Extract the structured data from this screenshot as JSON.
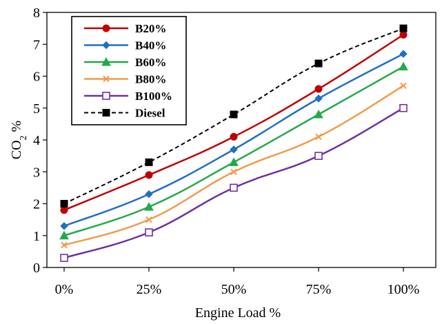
{
  "chart_data": {
    "type": "line",
    "categories": [
      "0%",
      "25%",
      "50%",
      "75%",
      "100%"
    ],
    "xlabel": "Engine Load %",
    "ylabel": {
      "prefix": "CO",
      "subscript": "2",
      "suffix": " %"
    },
    "ylim": [
      0,
      8
    ],
    "yticks": [
      "0",
      "1",
      "2",
      "3",
      "4",
      "5",
      "6",
      "7",
      "8"
    ],
    "grid": false,
    "legend_position": "top-left",
    "series": [
      {
        "name": "B20%",
        "color": "#c00000",
        "marker": "circle",
        "dash": "solid",
        "values": [
          1.8,
          2.9,
          4.1,
          5.6,
          7.3
        ]
      },
      {
        "name": "B40%",
        "color": "#1f6fc5",
        "marker": "diamond",
        "dash": "solid",
        "values": [
          1.3,
          2.3,
          3.7,
          5.3,
          6.7
        ]
      },
      {
        "name": "B60%",
        "color": "#22aa4a",
        "marker": "triangle",
        "dash": "solid",
        "values": [
          1.0,
          1.9,
          3.3,
          4.8,
          6.3
        ]
      },
      {
        "name": "B80%",
        "color": "#f29a4a",
        "marker": "x",
        "dash": "solid",
        "values": [
          0.7,
          1.5,
          3.0,
          4.1,
          5.7
        ]
      },
      {
        "name": "B100%",
        "color": "#7030a0",
        "marker": "square-open",
        "dash": "solid",
        "values": [
          0.3,
          1.1,
          2.5,
          3.5,
          5.0
        ]
      },
      {
        "name": "Diesel",
        "color": "#000000",
        "marker": "square",
        "dash": "dashed",
        "values": [
          2.0,
          3.3,
          4.8,
          6.4,
          7.5
        ]
      }
    ]
  }
}
